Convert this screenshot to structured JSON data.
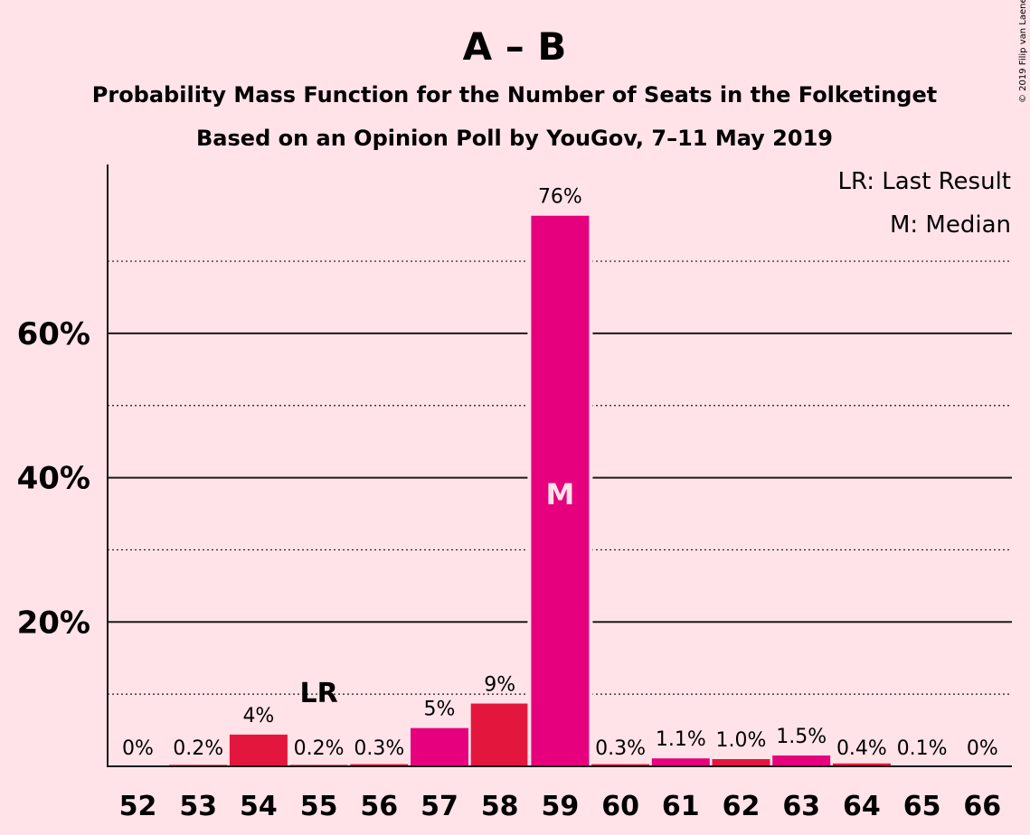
{
  "title": "A – B",
  "subtitle1": "Probability Mass Function for the Number of Seats in the Folketinget",
  "subtitle2": "Based on an Opinion Poll by YouGov, 7–11 May 2019",
  "copyright": "© 2019 Filip van Laenen",
  "legend": {
    "lr": "LR: Last Result",
    "m": "M: Median"
  },
  "colors": {
    "background": "#FFE3E8",
    "bar_red": "#E3173E",
    "bar_magenta": "#E6007E",
    "axis": "#1a1a1a"
  },
  "chart_data": {
    "type": "bar",
    "categories": [
      "52",
      "53",
      "54",
      "55",
      "56",
      "57",
      "58",
      "59",
      "60",
      "61",
      "62",
      "63",
      "64",
      "65",
      "66"
    ],
    "values": [
      0,
      0.2,
      4.4,
      0.2,
      0.3,
      5.3,
      8.7,
      76.3,
      0.3,
      1.1,
      1.0,
      1.5,
      0.4,
      0.1,
      0
    ],
    "labels": [
      "0%",
      "0.2%",
      "4%",
      "0.2%",
      "0.3%",
      "5%",
      "9%",
      "76%",
      "0.3%",
      "1.1%",
      "1.0%",
      "1.5%",
      "0.4%",
      "0.1%",
      "0%"
    ],
    "bar_colors": [
      "red",
      "red",
      "red",
      "red",
      "red",
      "magenta",
      "red",
      "magenta",
      "red",
      "magenta",
      "red",
      "magenta",
      "red",
      "red",
      "red"
    ],
    "last_result": {
      "category": "55",
      "label": "LR"
    },
    "median": {
      "category": "59",
      "label": "M"
    },
    "yticks": [
      {
        "value": 20,
        "label": "20%"
      },
      {
        "value": 40,
        "label": "40%"
      },
      {
        "value": 60,
        "label": "60%"
      }
    ],
    "minor_gridlines": [
      10,
      30,
      50,
      70
    ],
    "ylim": [
      0,
      83
    ],
    "xlabel": "",
    "ylabel": ""
  }
}
